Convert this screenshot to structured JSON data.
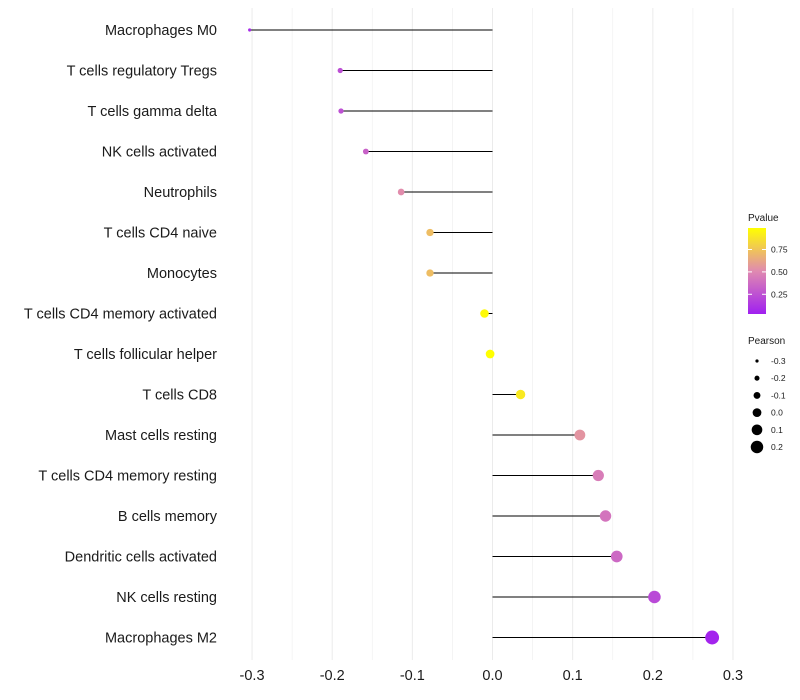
{
  "chart_data": {
    "type": "lollipop",
    "title": "",
    "xlabel": "",
    "ylabel": "",
    "xlim": [
      -0.325,
      0.315
    ],
    "x_ticks": [
      -0.3,
      -0.2,
      -0.1,
      0.0,
      0.1,
      0.2,
      0.3
    ],
    "x_tick_labels": [
      "-0.3",
      "-0.2",
      "-0.1",
      "0.0",
      "0.1",
      "0.2",
      "0.3"
    ],
    "grid": "vertical",
    "categories": [
      "Macrophages M0",
      "T cells regulatory  Tregs ",
      "T cells gamma delta",
      "NK cells activated",
      "Neutrophils",
      "T cells CD4 naive",
      "Monocytes",
      "T cells CD4 memory activated",
      "T cells follicular helper",
      "T cells CD8",
      "Mast cells resting",
      "T cells CD4 memory resting",
      "B cells memory ",
      "Dendritic cells activated",
      "NK cells resting",
      "Macrophages M2"
    ],
    "pearson": [
      -0.303,
      -0.19,
      -0.189,
      -0.158,
      -0.114,
      -0.078,
      -0.078,
      -0.01,
      -0.003,
      0.035,
      0.109,
      0.132,
      0.141,
      0.155,
      0.202,
      0.274
    ],
    "pvalue": [
      0.08,
      0.24,
      0.25,
      0.33,
      0.52,
      0.72,
      0.72,
      0.97,
      0.99,
      0.9,
      0.55,
      0.45,
      0.41,
      0.36,
      0.22,
      0.05
    ],
    "legend_color": {
      "title": "Pvalue",
      "range": [
        0.03,
        0.99
      ],
      "breaks": [
        0.25,
        0.5,
        0.75
      ],
      "labels": [
        "0.25",
        "0.50",
        "0.75"
      ],
      "low_color": "#a020f0",
      "high_color": "#ffff00",
      "placement": "right"
    },
    "legend_size": {
      "title": "Pearson",
      "breaks": [
        -0.3,
        -0.2,
        -0.1,
        0.0,
        0.1,
        0.2
      ],
      "labels": [
        "-0.3",
        "-0.2",
        "-0.1",
        "0.0",
        "0.1",
        "0.2"
      ],
      "placement": "right"
    },
    "segment_color": "#000000"
  }
}
